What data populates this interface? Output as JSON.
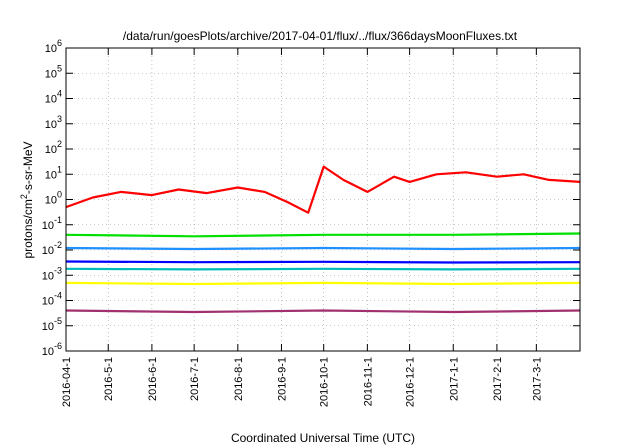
{
  "chart_data": {
    "type": "line",
    "title": "/data/run/goesPlots/archive/2017-04-01/flux/../flux/366daysMoonFluxes.txt",
    "xlabel": "Coordinated Universal Time (UTC)",
    "ylabel_parts": [
      "protons/cm",
      "2",
      "-s-sr-MeV"
    ],
    "yscale": "log",
    "ylim": [
      1e-06,
      1000000.0
    ],
    "xlim": [
      "2016-04-01",
      "2017-04-01"
    ],
    "grid": true,
    "y_ticks": [
      {
        "mant": "10",
        "exp": "-6",
        "value": 1e-06
      },
      {
        "mant": "10",
        "exp": "-5",
        "value": 1e-05
      },
      {
        "mant": "10",
        "exp": "-4",
        "value": 0.0001
      },
      {
        "mant": "10",
        "exp": "-3",
        "value": 0.001
      },
      {
        "mant": "10",
        "exp": "-2",
        "value": 0.01
      },
      {
        "mant": "10",
        "exp": "-1",
        "value": 0.1
      },
      {
        "mant": "10",
        "exp": "0",
        "value": 1
      },
      {
        "mant": "10",
        "exp": "1",
        "value": 10
      },
      {
        "mant": "10",
        "exp": "2",
        "value": 100
      },
      {
        "mant": "10",
        "exp": "3",
        "value": 1000
      },
      {
        "mant": "10",
        "exp": "4",
        "value": 10000
      },
      {
        "mant": "10",
        "exp": "5",
        "value": 100000
      },
      {
        "mant": "10",
        "exp": "6",
        "value": 1000000
      }
    ],
    "x_ticks": [
      "2016-04-1",
      "2016-5-1",
      "2016-6-1",
      "2016-7-1",
      "2016-8-1",
      "2016-9-1",
      "2016-10-1",
      "2016-11-1",
      "2016-12-1",
      "2017-1-1",
      "2017-2-1",
      "2017-3-1"
    ],
    "x_tick_dates": [
      "2016-04-01",
      "2016-05-01",
      "2016-06-01",
      "2016-07-01",
      "2016-08-01",
      "2016-09-01",
      "2016-10-01",
      "2016-11-01",
      "2016-12-01",
      "2017-01-01",
      "2017-02-01",
      "2017-03-01"
    ],
    "series": [
      {
        "color": "#ff0000",
        "x": [
          "2016-04-01",
          "2016-04-20",
          "2016-05-10",
          "2016-06-01",
          "2016-06-20",
          "2016-07-10",
          "2016-08-01",
          "2016-08-20",
          "2016-09-05",
          "2016-09-20",
          "2016-10-01",
          "2016-10-15",
          "2016-11-01",
          "2016-11-20",
          "2016-12-01",
          "2016-12-20",
          "2017-01-10",
          "2017-02-01",
          "2017-02-20",
          "2017-03-10",
          "2017-04-01"
        ],
        "y": [
          0.5,
          1.2,
          2,
          1.5,
          2.5,
          1.8,
          3,
          2,
          0.8,
          0.3,
          20,
          6,
          2,
          8,
          5,
          10,
          12,
          8,
          10,
          6,
          5
        ]
      },
      {
        "color": "#00e000",
        "x": [
          "2016-04-01",
          "2016-07-01",
          "2016-10-01",
          "2017-01-01",
          "2017-04-01"
        ],
        "y": [
          0.04,
          0.035,
          0.04,
          0.04,
          0.045
        ]
      },
      {
        "color": "#1e90ff",
        "x": [
          "2016-04-01",
          "2016-07-01",
          "2016-10-01",
          "2017-01-01",
          "2017-04-01"
        ],
        "y": [
          0.012,
          0.011,
          0.012,
          0.011,
          0.012
        ]
      },
      {
        "color": "#00bbbb",
        "x": [
          "2016-04-01",
          "2016-07-01",
          "2016-10-01",
          "2017-01-01",
          "2017-04-01"
        ],
        "y": [
          0.0018,
          0.0017,
          0.0018,
          0.0017,
          0.0018
        ]
      },
      {
        "color": "#0000ff",
        "x": [
          "2016-04-01",
          "2016-07-01",
          "2016-10-01",
          "2017-01-01",
          "2017-04-01"
        ],
        "y": [
          0.0035,
          0.0033,
          0.0034,
          0.0032,
          0.0033
        ]
      },
      {
        "color": "#ffff00",
        "x": [
          "2016-04-01",
          "2016-07-01",
          "2016-10-01",
          "2017-01-01",
          "2017-04-01"
        ],
        "y": [
          0.0005,
          0.00045,
          0.0005,
          0.00045,
          0.0005
        ]
      },
      {
        "color": "#a0306e",
        "x": [
          "2016-04-01",
          "2016-07-01",
          "2016-10-01",
          "2017-01-01",
          "2017-04-01"
        ],
        "y": [
          4e-05,
          3.5e-05,
          4e-05,
          3.5e-05,
          4e-05
        ]
      }
    ]
  }
}
